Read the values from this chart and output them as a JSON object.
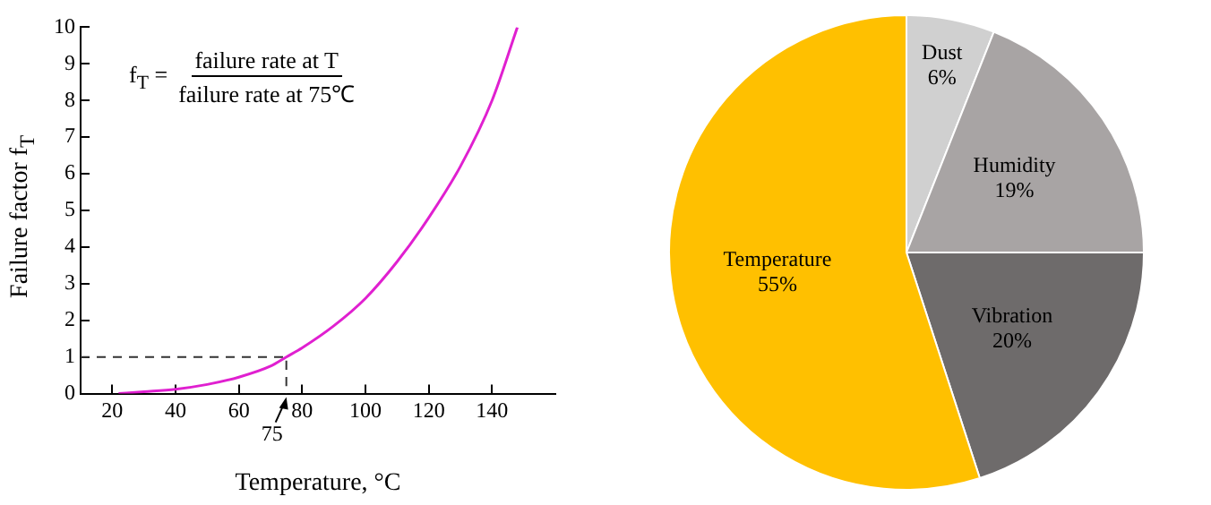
{
  "chart_data": [
    {
      "type": "line",
      "xlabel": "Temperature, °C",
      "ylabel": "Failure factor f$_{T}$",
      "annotations": [
        "f$_{T}$ =",
        "failure rate at T",
        "failure rate at 75℃",
        {
          "text": "75",
          "x": 75,
          "y": 0
        }
      ],
      "xlim": [
        10,
        160
      ],
      "ylim": [
        0,
        10
      ],
      "xticks": [
        20,
        40,
        60,
        80,
        100,
        120,
        140
      ],
      "yticks": [
        0,
        1,
        2,
        3,
        4,
        5,
        6,
        7,
        8,
        9,
        10
      ],
      "grid": false,
      "legend": false,
      "marker": "none",
      "series": [
        {
          "color": "#e020d0",
          "x": [
            22,
            30,
            40,
            50,
            60,
            70,
            75,
            80,
            90,
            100,
            110,
            120,
            130,
            140,
            148
          ],
          "values": [
            0,
            0.05,
            0.12,
            0.25,
            0.45,
            0.75,
            1,
            1.25,
            1.85,
            2.6,
            3.6,
            4.8,
            6.2,
            8.0,
            10
          ]
        },
        {
          "color": "#333333",
          "line_style": "dashed",
          "x": [
            10,
            75,
            75
          ],
          "values": [
            1,
            1,
            0
          ]
        }
      ]
    },
    {
      "type": "pie",
      "categories": [
        "Dust",
        "Humidity",
        "Vibration",
        "Temperature"
      ],
      "values": [
        6,
        19,
        20,
        55
      ],
      "value_labels": [
        "6%",
        "19%",
        "20%",
        "55%"
      ],
      "colors": [
        "#d0d0d0",
        "#a8a4a4",
        "#6e6b6b",
        "#ffc000"
      ]
    }
  ]
}
